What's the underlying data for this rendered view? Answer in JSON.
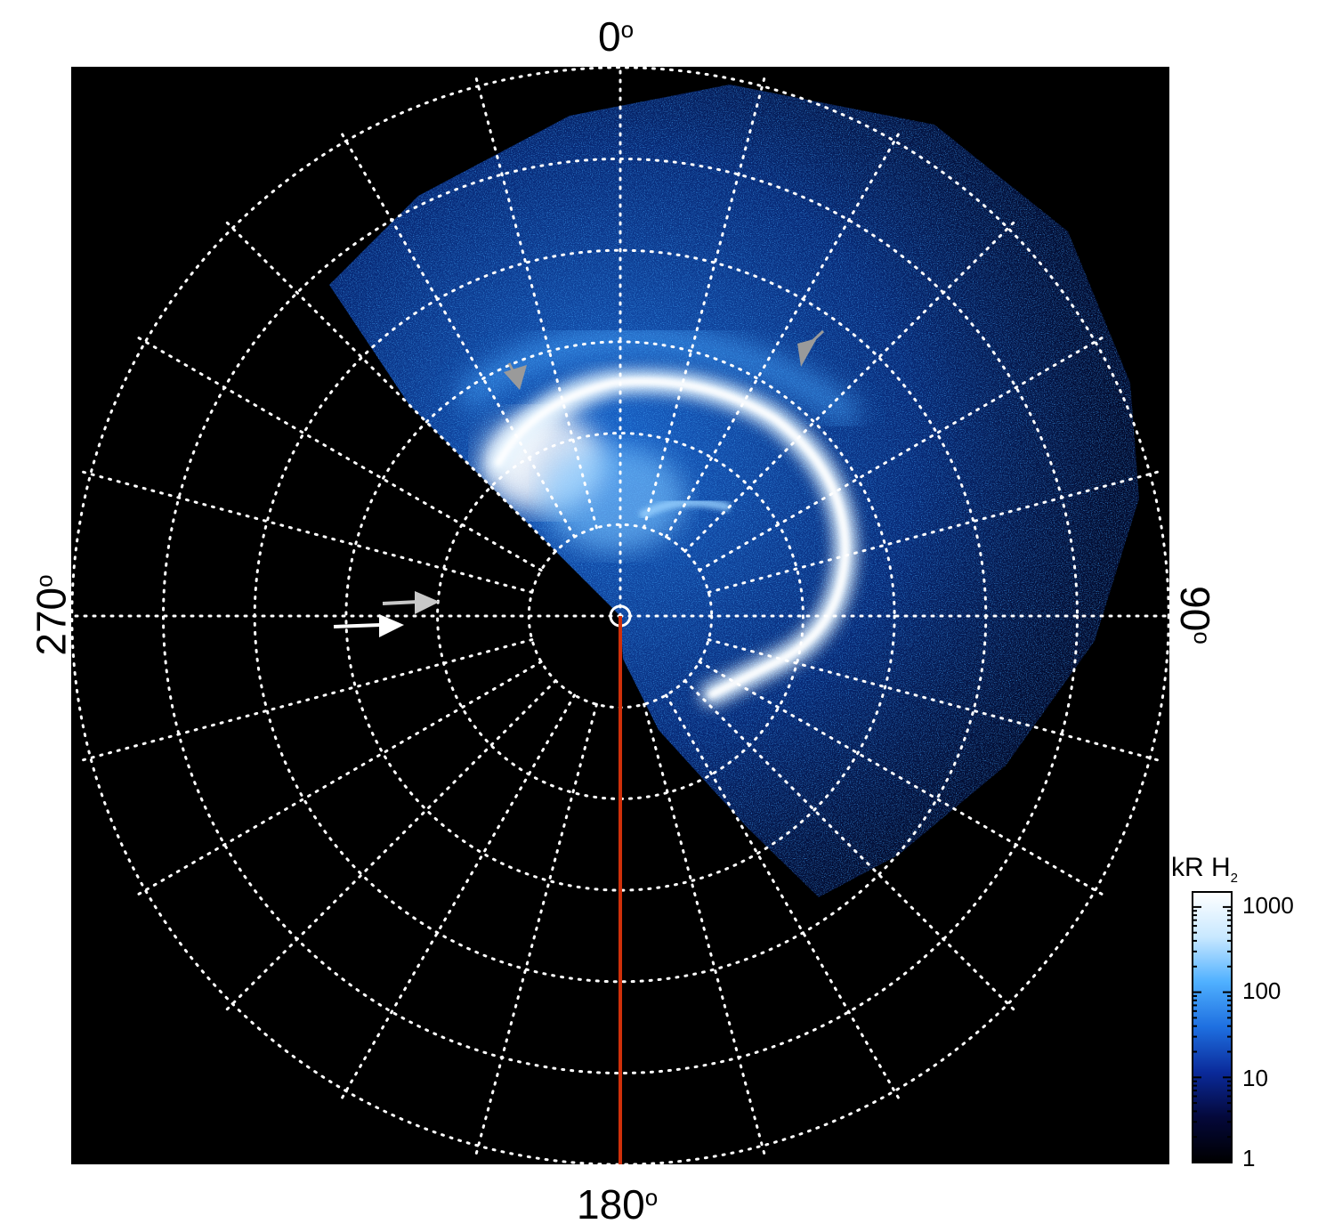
{
  "axis_labels": {
    "top": "0",
    "bottom": "180",
    "left": "270",
    "right": "90",
    "degree_symbol": "o"
  },
  "colorbar": {
    "title": "kR H",
    "title_sub": "2",
    "ticks": [
      "1000",
      "100",
      "10",
      "1"
    ],
    "scale": "log",
    "range": [
      1,
      1500
    ],
    "colors": [
      "#000000",
      "#04083a",
      "#0a2a9a",
      "#1e6fe0",
      "#4fb0ff",
      "#c8e8ff",
      "#ffffff"
    ]
  },
  "image": {
    "background": "#000000",
    "grid_color": "#ffffff",
    "highlight_line_color": "#d0300a",
    "arrows": [
      {
        "color": "#9a9a9a",
        "name": "grey"
      },
      {
        "color": "#9a9a9a",
        "name": "grey"
      },
      {
        "color": "#c8c8c8",
        "name": "light-grey"
      },
      {
        "color": "#ffffff",
        "name": "white"
      }
    ]
  }
}
